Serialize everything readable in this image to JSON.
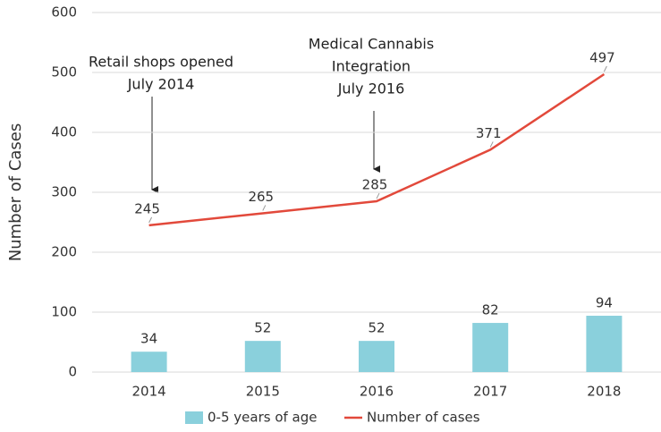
{
  "chart_data": {
    "type": "bar",
    "ylabel": "Number of Cases",
    "categories": [
      "2014",
      "2015",
      "2016",
      "2017",
      "2018"
    ],
    "series": [
      {
        "name": "0-5 years of age",
        "type": "bar",
        "color": "#8ad0dc",
        "values": [
          34,
          52,
          52,
          82,
          94
        ]
      },
      {
        "name": "Number of cases",
        "type": "line",
        "color": "#e2493b",
        "values": [
          245,
          265,
          285,
          371,
          497
        ]
      }
    ],
    "annotations": [
      {
        "lines": [
          "Retail shops opened",
          "July 2014"
        ]
      },
      {
        "lines": [
          "Medical Cannabis",
          "Integration",
          "July 2016"
        ]
      }
    ],
    "ylim": [
      0,
      600
    ],
    "yticks": [
      0,
      100,
      200,
      300,
      400,
      500,
      600
    ],
    "grid": true,
    "legend": "bottom"
  }
}
